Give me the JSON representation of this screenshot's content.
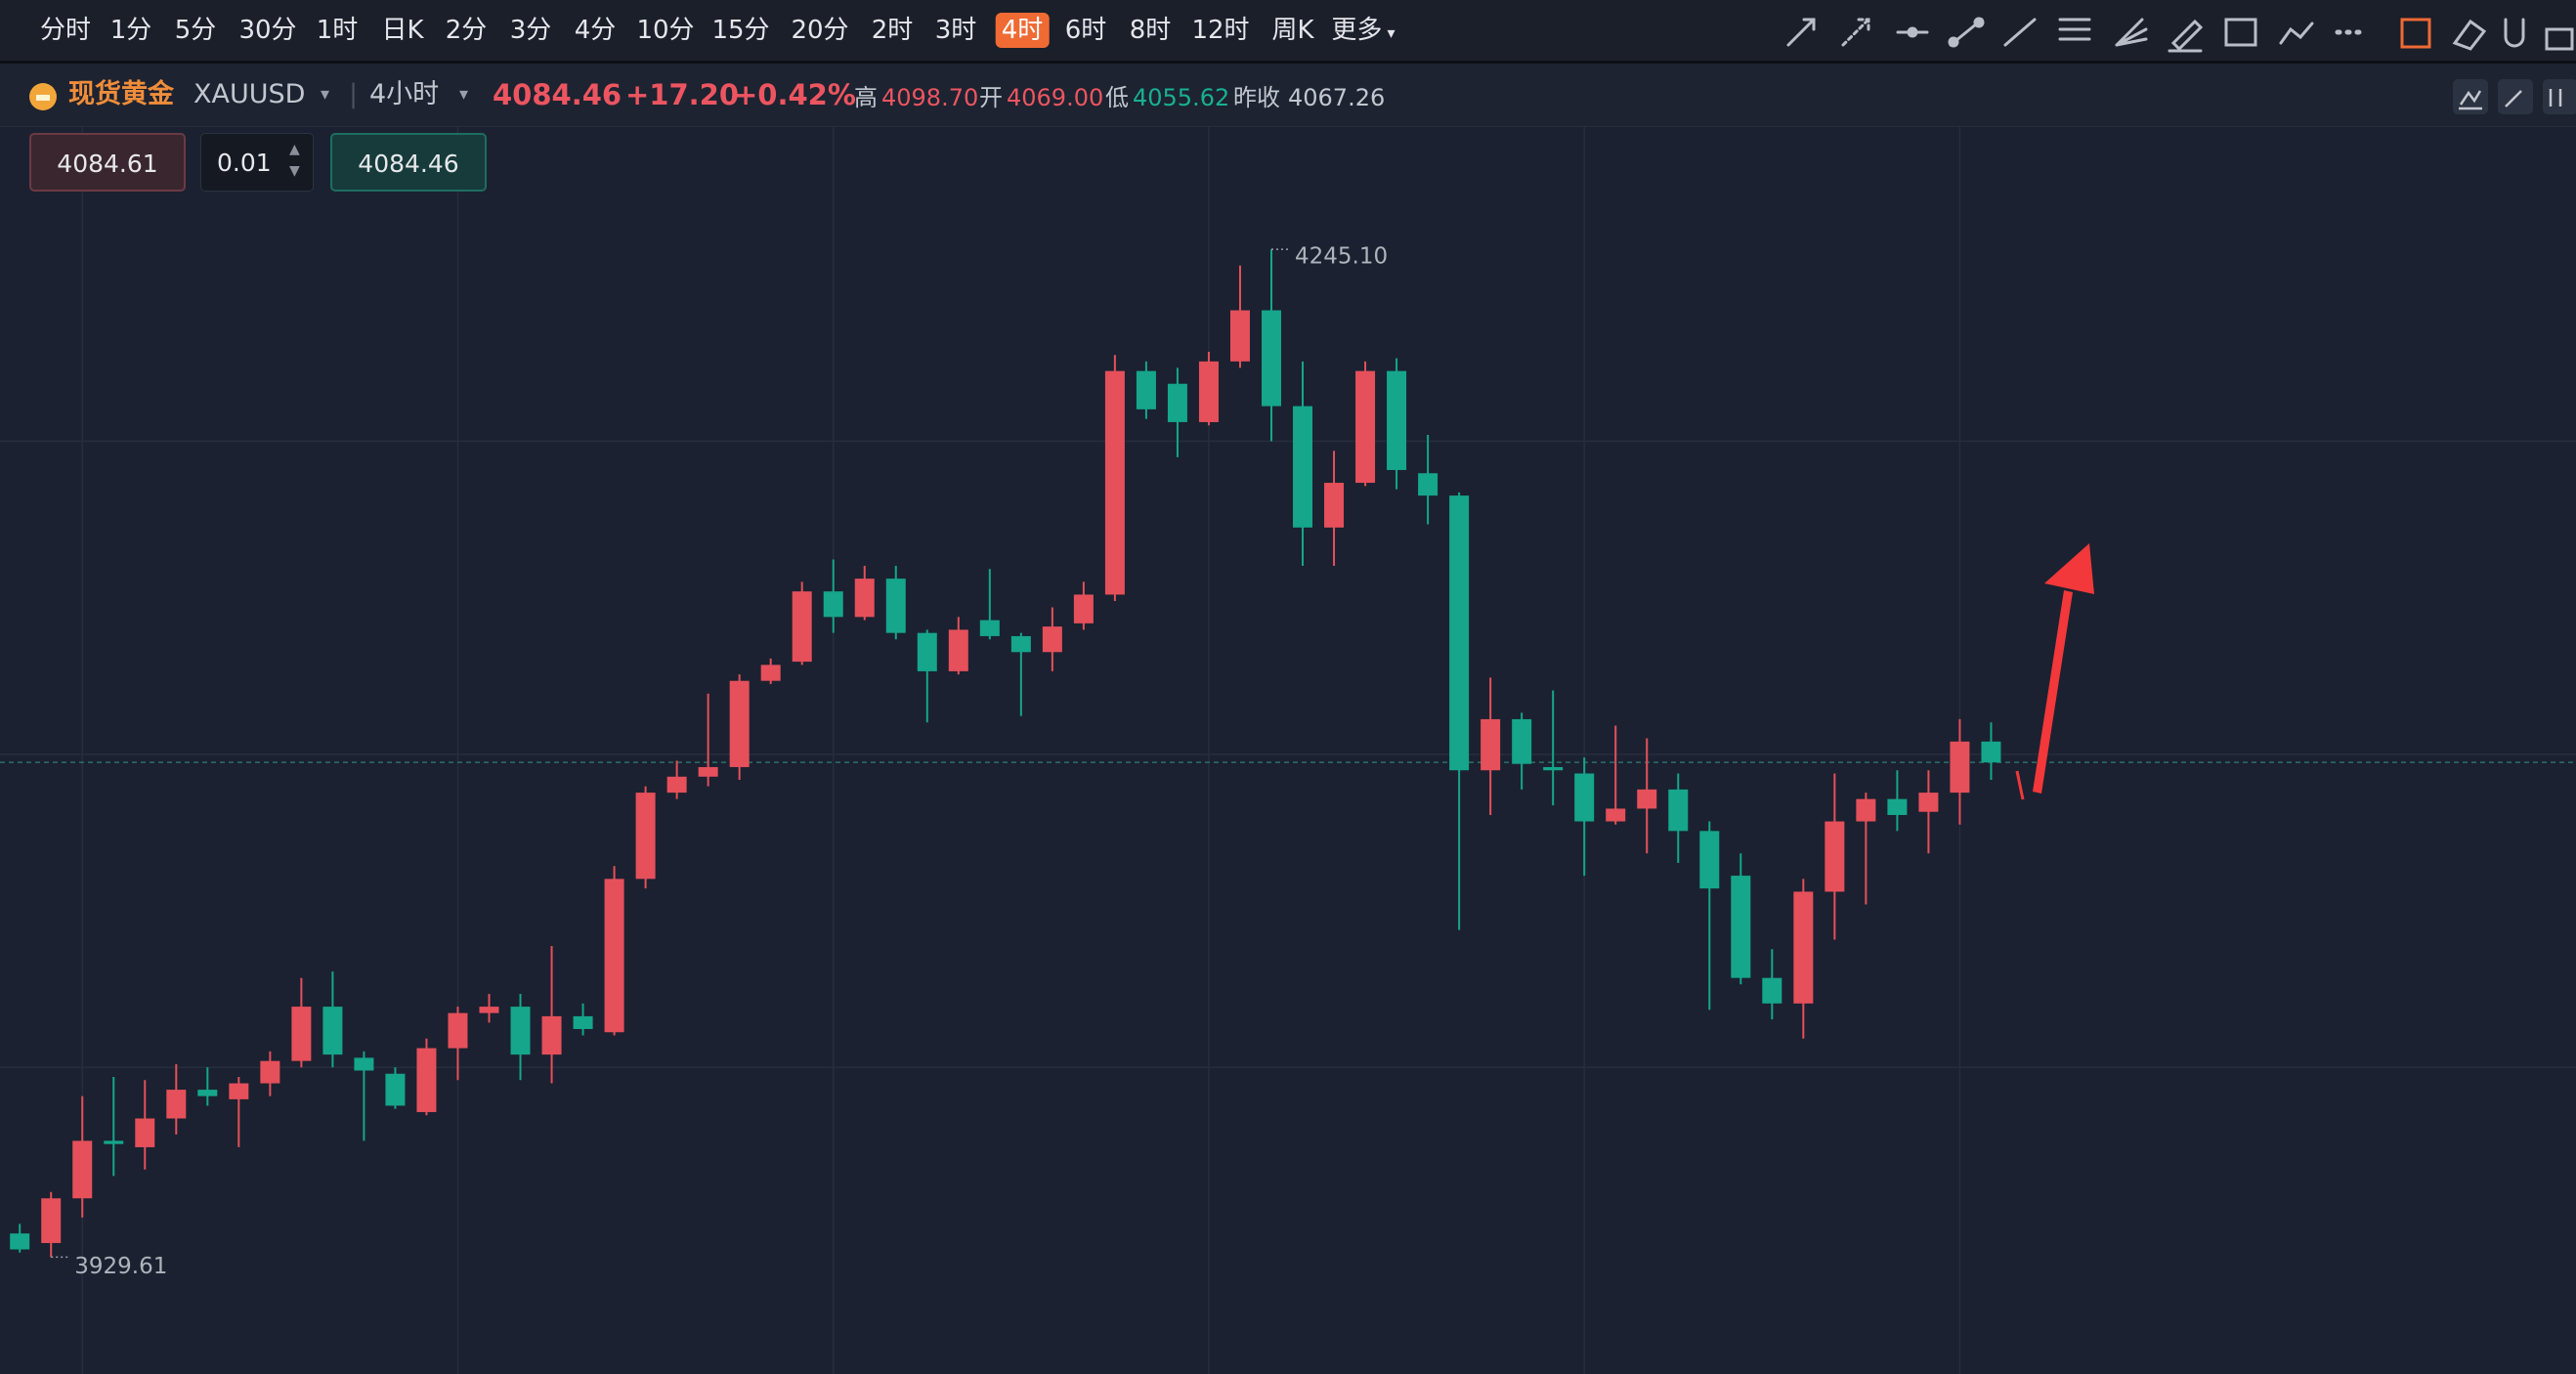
{
  "toolbar": {
    "periods": [
      "分时",
      "1分",
      "5分",
      "30分",
      "1时",
      "日K",
      "2分",
      "3分",
      "4分",
      "10分",
      "15分",
      "20分",
      "2时",
      "3时",
      "4时",
      "6时",
      "8时",
      "12时",
      "周K",
      "更多"
    ],
    "active": 14
  },
  "header": {
    "name": "现货黄金",
    "code": "XAUUSD",
    "period": "4小时",
    "price": 4084.46,
    "change": "+17.20",
    "change_pct": "+0.42%",
    "stats": [
      {
        "label": "高",
        "value": "4098.70"
      },
      {
        "label": "开",
        "value": "4069.00"
      },
      {
        "label": "低",
        "value": "4055.62"
      },
      {
        "label": "昨收",
        "value": "4067.26"
      }
    ]
  },
  "order_panel": {
    "sell": "4084.61",
    "qty": "0.01",
    "buy": "4084.46"
  },
  "chart_data": {
    "type": "candlestick",
    "up_color": "#e5505b",
    "down_color": "#15a68b",
    "grid": true,
    "ylim": [
      3893,
      4282
    ],
    "yticks": [
      3989,
      4087,
      4185
    ],
    "open": [
      3937,
      3934,
      3948,
      3966,
      3964,
      3973,
      3982,
      3979,
      3984,
      3991,
      4008,
      3992,
      3987,
      3975,
      3995,
      4006,
      4008,
      3993,
      4005,
      4000,
      4048,
      4075,
      4080,
      4083,
      4110,
      4116,
      4138,
      4130,
      4142,
      4125,
      4113,
      4129,
      4124,
      4119,
      4128,
      4137,
      4207,
      4203,
      4191,
      4210,
      4226,
      4196,
      4158,
      4172,
      4207,
      4175,
      4168,
      4082,
      4098,
      4083,
      4081,
      4066,
      4070,
      4076,
      4063,
      4049,
      4017,
      4009,
      4044,
      4066,
      4073,
      4069,
      4075,
      4091
    ],
    "high": [
      3940,
      3950,
      3980,
      3986,
      3985,
      3990,
      3989,
      3986,
      3994,
      4017,
      4019,
      3994,
      3989,
      3998,
      4008,
      4012,
      4012,
      4027,
      4009,
      4052,
      4077,
      4085,
      4106,
      4112,
      4117,
      4141,
      4148,
      4146,
      4146,
      4126,
      4130,
      4145,
      4125,
      4133,
      4141,
      4212,
      4210,
      4208,
      4213,
      4240,
      4245.1,
      4210,
      4182,
      4210,
      4211,
      4187,
      4169,
      4111,
      4100,
      4107,
      4086,
      4096,
      4092,
      4081,
      4066,
      4056,
      4026,
      4048,
      4081,
      4075,
      4082,
      4082,
      4098,
      4097
    ],
    "low": [
      3931,
      3929.61,
      3942,
      3955,
      3957,
      3968,
      3977,
      3964,
      3980,
      3989,
      3989,
      3966,
      3976,
      3974,
      3985,
      4003,
      3985,
      3984,
      3999,
      3999,
      4045,
      4073,
      4077,
      4079,
      4109,
      4115,
      4125,
      4129,
      4123,
      4097,
      4112,
      4123,
      4099,
      4113,
      4126,
      4135,
      4192,
      4180,
      4190,
      4208,
      4185,
      4146,
      4146,
      4171,
      4170,
      4159,
      4032,
      4068,
      4076,
      4071,
      4049,
      4065,
      4056,
      4053,
      4007,
      4015,
      4004,
      3998,
      4029,
      4040,
      4063,
      4056,
      4065,
      4079
    ],
    "close": [
      3932,
      3948,
      3966,
      3965,
      3973,
      3982,
      3980,
      3984,
      3991,
      4008,
      3993,
      3988,
      3977,
      3995,
      4006,
      4008,
      3993,
      4005,
      4001,
      4048,
      4075,
      4080,
      4083,
      4110,
      4115,
      4138,
      4130,
      4142,
      4125,
      4113,
      4126,
      4124,
      4119,
      4127,
      4137,
      4207,
      4195,
      4191,
      4210,
      4226,
      4196,
      4158,
      4172,
      4207,
      4176,
      4168,
      4082,
      4098,
      4084,
      4082,
      4066,
      4070,
      4076,
      4063,
      4045,
      4017,
      4009,
      4044,
      4066,
      4073,
      4068,
      4075,
      4091,
      4084.46
    ],
    "annotations": [
      {
        "value": 4245.1,
        "label": "4245.10"
      },
      {
        "value": 3929.61,
        "label": "3929.61"
      }
    ]
  }
}
